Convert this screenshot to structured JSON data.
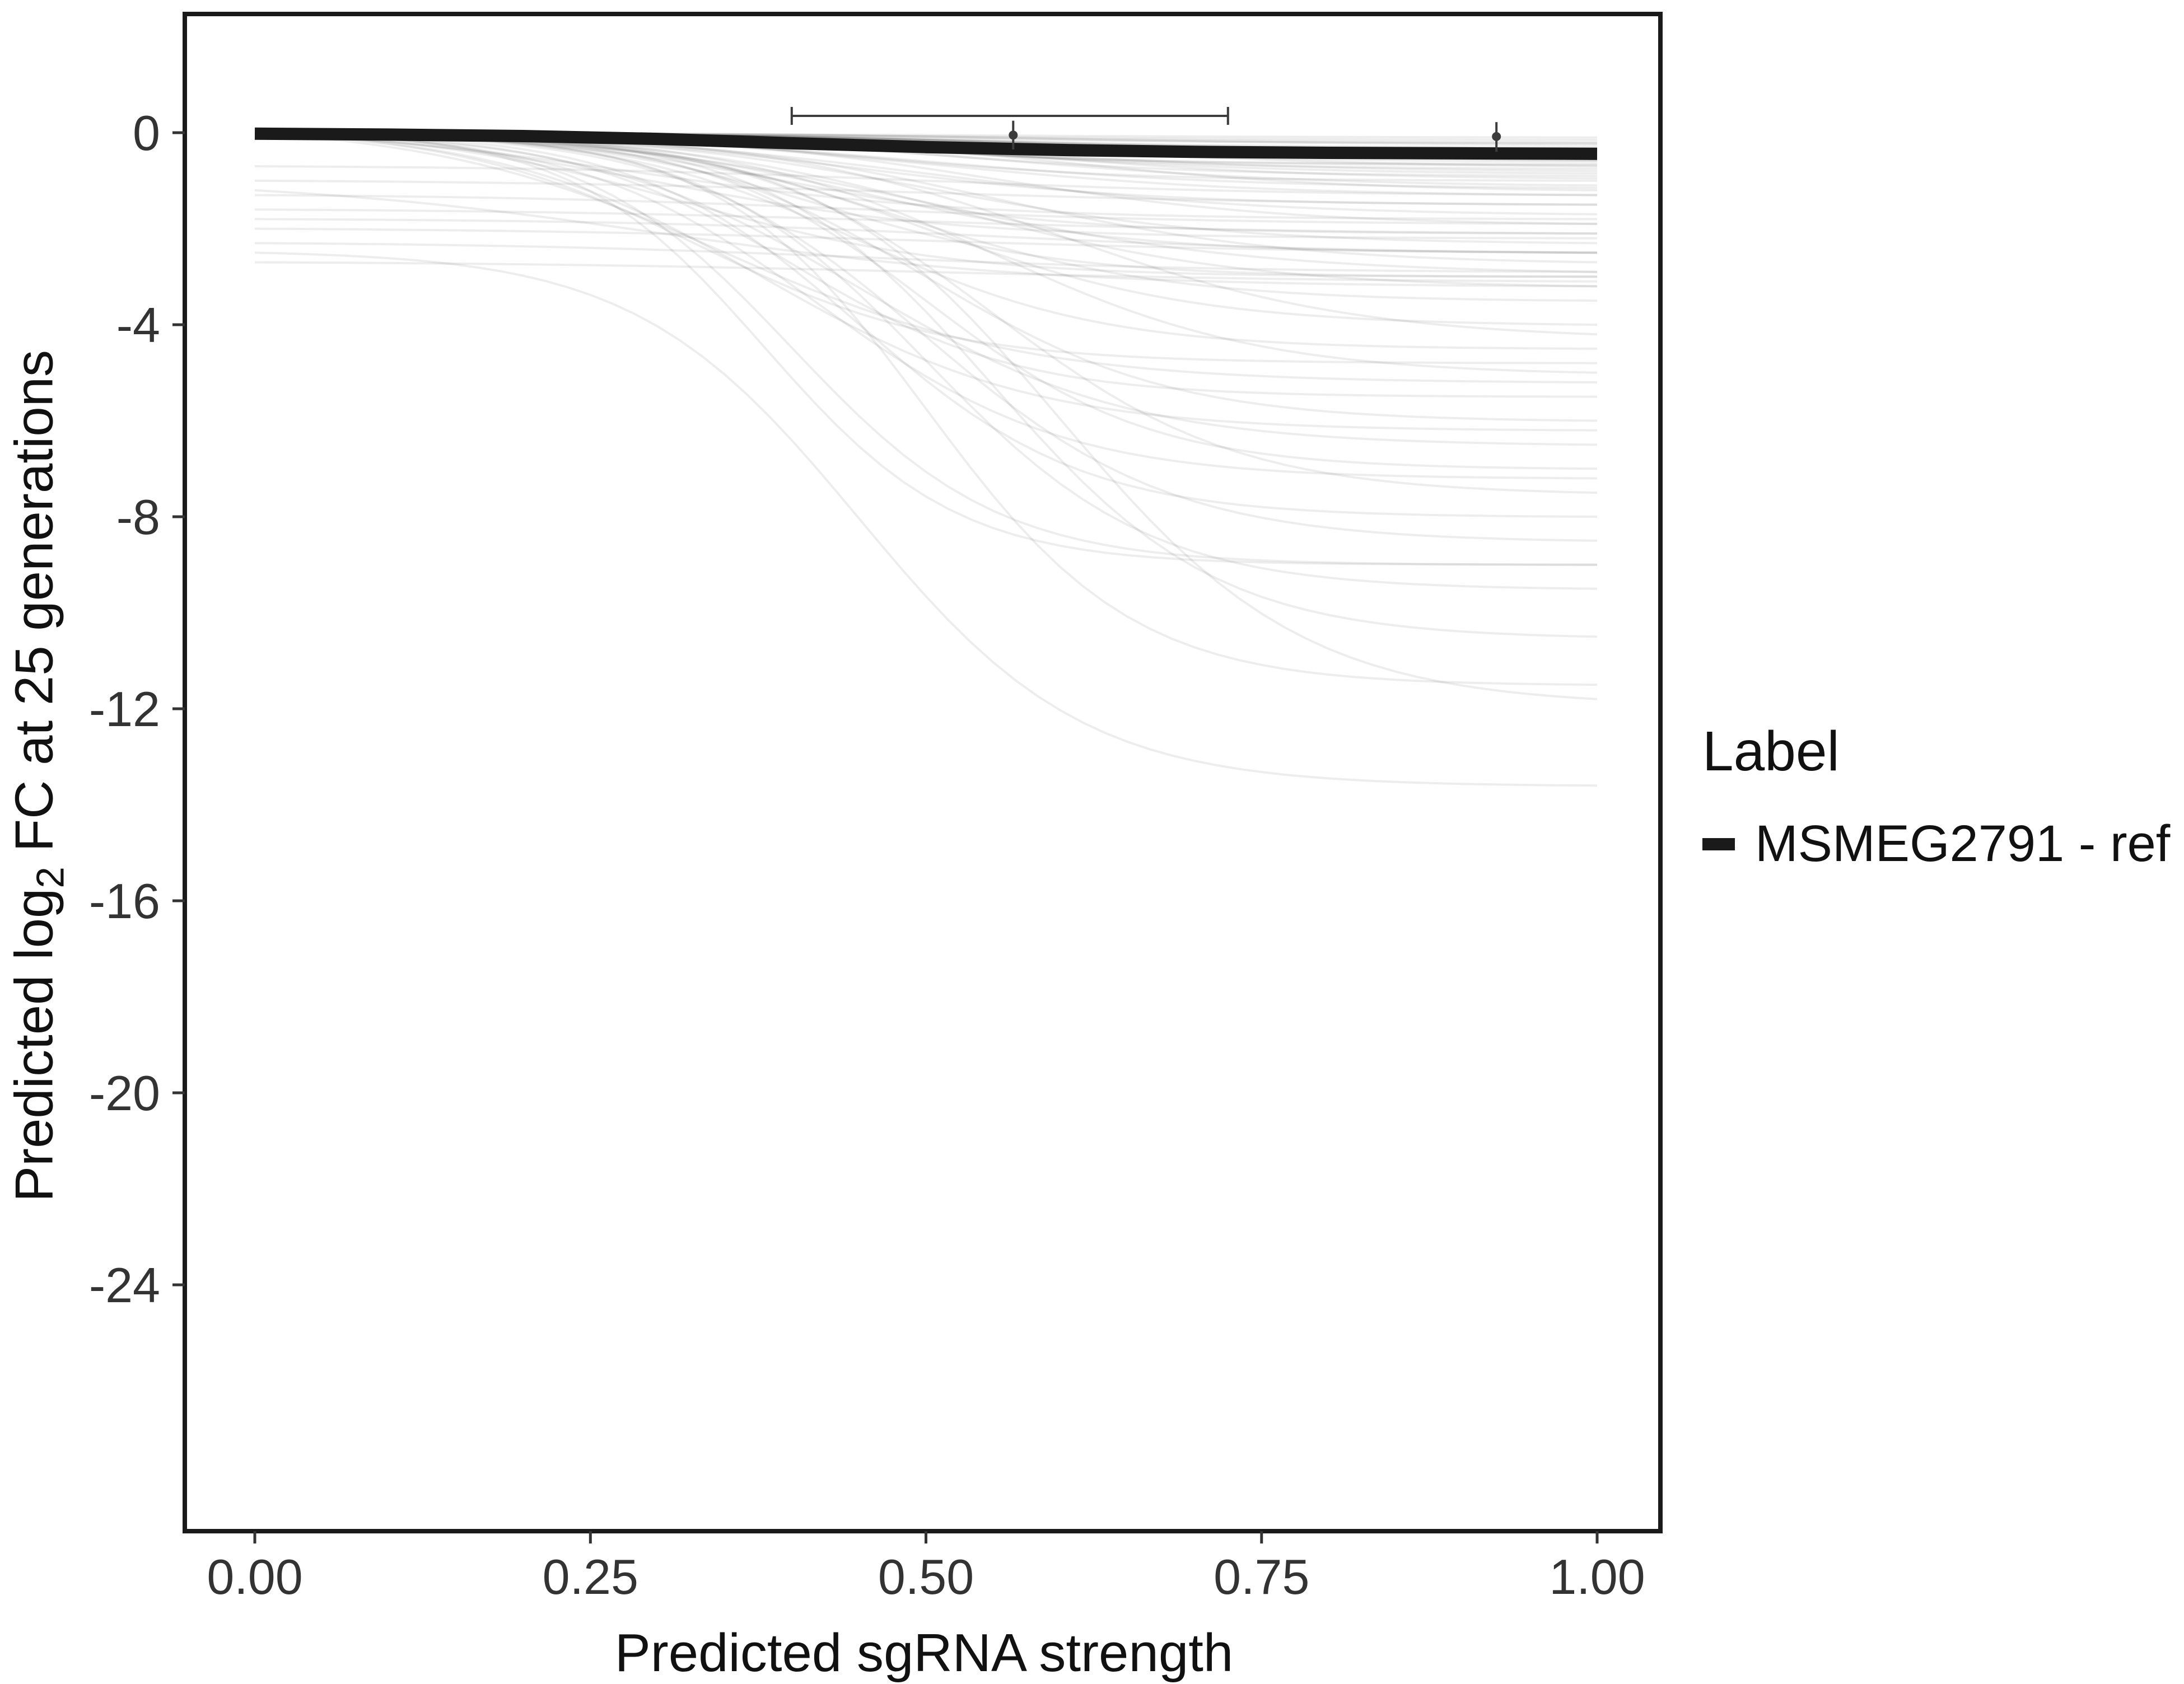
{
  "chart_data": {
    "type": "line",
    "title": "",
    "xlabel": "Predicted sgRNA strength",
    "ylabel_prefix": "Predicted log",
    "ylabel_sub": "2",
    "ylabel_suffix": " FC at 25 generations",
    "xlim": [
      0,
      1
    ],
    "ylim": [
      -29,
      2.5
    ],
    "x_ticks": [
      "0.00",
      "0.25",
      "0.50",
      "0.75",
      "1.00"
    ],
    "y_ticks": [
      "0",
      "-4",
      "-8",
      "-12",
      "-16",
      "-20",
      "-24"
    ],
    "grid": false,
    "legend": {
      "title": "Label",
      "position": "right",
      "entries": [
        {
          "label": "MSMEG2791 - ref",
          "color": "#1a1a1a"
        }
      ]
    },
    "highlight_series": {
      "name": "MSMEG2791 - ref",
      "color": "#1a1a1a",
      "points": [
        [
          0,
          -0.02
        ],
        [
          0.1,
          -0.04
        ],
        [
          0.2,
          -0.07
        ],
        [
          0.3,
          -0.13
        ],
        [
          0.4,
          -0.22
        ],
        [
          0.5,
          -0.3
        ],
        [
          0.6,
          -0.36
        ],
        [
          0.7,
          -0.4
        ],
        [
          0.8,
          -0.42
        ],
        [
          0.9,
          -0.43
        ],
        [
          1,
          -0.44
        ]
      ]
    },
    "background_series": {
      "description": "ensemble of faint per-gene predicted curves, logistic drop model [y_start, total_drop, midpoint_x, steepness]",
      "color": "#000000",
      "opacity": 0.07,
      "model": "logistic",
      "curves": [
        [
          0,
          0.15,
          0.5,
          7
        ],
        [
          0,
          0.2,
          0.55,
          8
        ],
        [
          0,
          0.25,
          0.6,
          7
        ],
        [
          0,
          0.3,
          0.5,
          8
        ],
        [
          0,
          0.35,
          0.45,
          9
        ],
        [
          0,
          0.4,
          0.6,
          7
        ],
        [
          0,
          0.45,
          0.5,
          8
        ],
        [
          0,
          0.5,
          0.55,
          9
        ],
        [
          0,
          0.55,
          0.65,
          7
        ],
        [
          0,
          0.6,
          0.5,
          8
        ],
        [
          0,
          0.65,
          0.45,
          10
        ],
        [
          0,
          0.7,
          0.6,
          8
        ],
        [
          0,
          0.75,
          0.5,
          9
        ],
        [
          0,
          0.8,
          0.55,
          8
        ],
        [
          0,
          0.9,
          0.5,
          9
        ],
        [
          0,
          1.0,
          0.45,
          10
        ],
        [
          0,
          1.1,
          0.55,
          8
        ],
        [
          0,
          1.2,
          0.6,
          9
        ],
        [
          0,
          1.3,
          0.5,
          8
        ],
        [
          0,
          0.1,
          0.5,
          6
        ],
        [
          0,
          0.22,
          0.48,
          7
        ],
        [
          0,
          0.33,
          0.52,
          8
        ],
        [
          0,
          0.42,
          0.58,
          7
        ],
        [
          0,
          0.58,
          0.62,
          8
        ],
        [
          0,
          0.68,
          0.47,
          9
        ],
        [
          0,
          0.85,
          0.53,
          8
        ],
        [
          0,
          0.95,
          0.57,
          9
        ],
        [
          0,
          1.15,
          0.49,
          8
        ],
        [
          0,
          1.5,
          0.45,
          9
        ],
        [
          0,
          1.7,
          0.5,
          8
        ],
        [
          0,
          1.9,
          0.55,
          9
        ],
        [
          0,
          2.1,
          0.4,
          10
        ],
        [
          0,
          2.3,
          0.5,
          9
        ],
        [
          0,
          2.5,
          0.45,
          10
        ],
        [
          0,
          2.7,
          0.55,
          9
        ],
        [
          0,
          2.9,
          0.5,
          8
        ],
        [
          0,
          3.0,
          0.42,
          11
        ],
        [
          -0.7,
          0.6,
          0.5,
          7
        ],
        [
          -1.0,
          0.5,
          0.5,
          6
        ],
        [
          -1.3,
          0.6,
          0.45,
          7
        ],
        [
          -1.6,
          0.5,
          0.5,
          6
        ],
        [
          -1.8,
          0.7,
          0.55,
          7
        ],
        [
          -2.0,
          0.5,
          0.5,
          6
        ],
        [
          -2.3,
          0.6,
          0.45,
          7
        ],
        [
          -2.7,
          0.4,
          0.5,
          6
        ],
        [
          0,
          4.0,
          0.5,
          10
        ],
        [
          0,
          4.5,
          0.45,
          11
        ],
        [
          0,
          5.0,
          0.55,
          10
        ],
        [
          0,
          5.5,
          0.4,
          12
        ],
        [
          0,
          6.0,
          0.5,
          11
        ],
        [
          0,
          6.5,
          0.45,
          10
        ],
        [
          0,
          7.0,
          0.5,
          12
        ],
        [
          0,
          7.5,
          0.55,
          11
        ],
        [
          0,
          8.0,
          0.45,
          12
        ],
        [
          0,
          8.5,
          0.5,
          11
        ],
        [
          0,
          9.0,
          0.4,
          13
        ],
        [
          0,
          9.5,
          0.5,
          12
        ],
        [
          0,
          5.2,
          0.35,
          9
        ],
        [
          0,
          6.2,
          0.38,
          10
        ],
        [
          0,
          7.2,
          0.42,
          11
        ],
        [
          0,
          4.2,
          0.6,
          9
        ],
        [
          0,
          3.5,
          0.48,
          10
        ],
        [
          0,
          3.2,
          0.52,
          9
        ],
        [
          0,
          10.5,
          0.55,
          12
        ],
        [
          0,
          11.5,
          0.5,
          13
        ],
        [
          0,
          11.8,
          0.6,
          11
        ],
        [
          -2.5,
          11.1,
          0.45,
          12
        ],
        [
          0,
          9.0,
          0.38,
          14
        ],
        [
          0,
          2.2,
          0.3,
          9
        ],
        [
          0,
          3.0,
          0.32,
          10
        ],
        [
          0,
          1.8,
          0.28,
          8
        ],
        [
          0,
          4.8,
          0.33,
          11
        ],
        [
          -1.2,
          2.0,
          0.3,
          7
        ]
      ]
    },
    "pointranges": [
      {
        "x": 0.565,
        "y": -0.05,
        "y_lo": -0.35,
        "y_hi": 0.25,
        "x_lo": 0.4,
        "x_hi": 0.725,
        "bar_y": 0.35
      },
      {
        "x": 0.925,
        "y": -0.08,
        "y_lo": -0.4,
        "y_hi": 0.22
      }
    ]
  },
  "colors": {
    "panel_border": "#1a1a1a",
    "tick_text": "#333333",
    "axis_title": "#111111",
    "background_line": "#000000",
    "errorbar": "#3c3c3c"
  }
}
